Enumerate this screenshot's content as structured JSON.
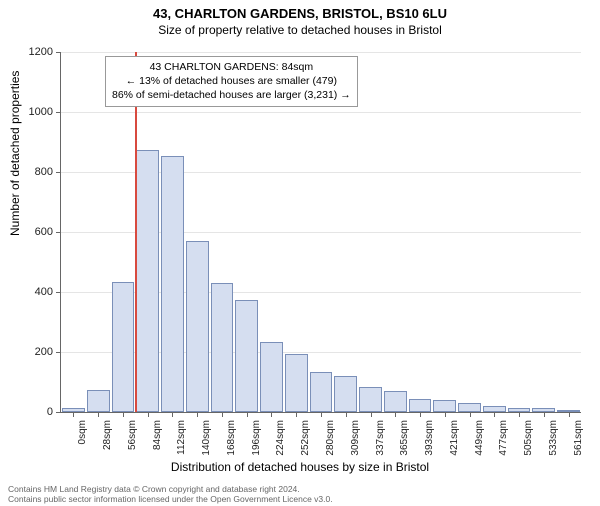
{
  "title": "43, CHARLTON GARDENS, BRISTOL, BS10 6LU",
  "subtitle": "Size of property relative to detached houses in Bristol",
  "ylabel": "Number of detached properties",
  "xlabel": "Distribution of detached houses by size in Bristol",
  "chart": {
    "type": "histogram",
    "ylim": [
      0,
      1200
    ],
    "ytick_step": 200,
    "yticks": [
      0,
      200,
      400,
      600,
      800,
      1000,
      1200
    ],
    "xticks": [
      "0sqm",
      "28sqm",
      "56sqm",
      "84sqm",
      "112sqm",
      "140sqm",
      "168sqm",
      "196sqm",
      "224sqm",
      "252sqm",
      "280sqm",
      "309sqm",
      "337sqm",
      "365sqm",
      "393sqm",
      "421sqm",
      "449sqm",
      "477sqm",
      "505sqm",
      "533sqm",
      "561sqm"
    ],
    "bar_color": "#d5def0",
    "bar_border_color": "#7a8fb8",
    "background_color": "#ffffff",
    "grid_color": "#e5e5e5",
    "values": [
      15,
      72,
      435,
      875,
      855,
      570,
      430,
      375,
      235,
      195,
      135,
      120,
      85,
      70,
      45,
      40,
      30,
      20,
      15,
      12,
      8
    ]
  },
  "marker": {
    "position_index": 3,
    "color": "#d84a3f",
    "label": "84sqm"
  },
  "annotation": {
    "line1": "43 CHARLTON GARDENS: 84sqm",
    "line2": "← 13% of detached houses are smaller (479)",
    "line3": "86% of semi-detached houses are larger (3,231) →"
  },
  "attribution": {
    "line1": "Contains HM Land Registry data © Crown copyright and database right 2024.",
    "line2": "Contains public sector information licensed under the Open Government Licence v3.0."
  }
}
